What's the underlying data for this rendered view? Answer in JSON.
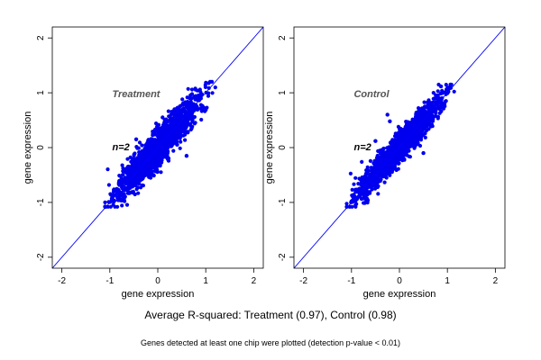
{
  "chart_data": [
    {
      "type": "scatter",
      "title": "",
      "annotation_title": "Treatment",
      "annotation_n": "n=2",
      "xlabel": "gene expression",
      "ylabel": "gene expression",
      "xlim": [
        -2.2,
        2.2
      ],
      "ylim": [
        -2.2,
        2.2
      ],
      "xticks": [
        -2,
        -1,
        0,
        1,
        2
      ],
      "yticks": [
        -2,
        -1,
        0,
        1,
        2
      ],
      "x_tick_labels": [
        "-2",
        "-1",
        "0",
        "1",
        "2"
      ],
      "y_tick_labels": [
        "-2",
        "-1",
        "0",
        "1",
        "2"
      ],
      "reference_line": "y = x",
      "grid": false,
      "point_color": "#0000ee",
      "line_color": "#0000ff",
      "point_cloud": {
        "x_range": [
          -1.1,
          1.2
        ],
        "y_range": [
          -1.08,
          1.2
        ],
        "correlation": 0.97
      },
      "notable_points": [
        {
          "x": 0.1,
          "y": 0.55
        },
        {
          "x": -0.45,
          "y": 0.15
        },
        {
          "x": 0.6,
          "y": -0.15
        },
        {
          "x": -0.15,
          "y": -0.55
        }
      ]
    },
    {
      "type": "scatter",
      "title": "",
      "annotation_title": "Control",
      "annotation_n": "n=2",
      "xlabel": "gene expression",
      "ylabel": "gene expression",
      "xlim": [
        -2.2,
        2.2
      ],
      "ylim": [
        -2.2,
        2.2
      ],
      "xticks": [
        -2,
        -1,
        0,
        1,
        2
      ],
      "yticks": [
        -2,
        -1,
        0,
        1,
        2
      ],
      "x_tick_labels": [
        "-2",
        "-1",
        "0",
        "1",
        "2"
      ],
      "y_tick_labels": [
        "-2",
        "-1",
        "0",
        "1",
        "2"
      ],
      "reference_line": "y = x",
      "grid": false,
      "point_color": "#0000ee",
      "line_color": "#0000ff",
      "point_cloud": {
        "x_range": [
          -1.1,
          1.15
        ],
        "y_range": [
          -1.08,
          1.15
        ],
        "correlation": 0.98
      },
      "notable_points": [
        {
          "x": -0.25,
          "y": 0.6
        },
        {
          "x": -0.2,
          "y": 0.48
        },
        {
          "x": -0.5,
          "y": 0.12
        },
        {
          "x": 0.5,
          "y": -0.1
        }
      ]
    }
  ],
  "caption": {
    "main": "Average R-squared: Treatment (0.97), Control (0.98)",
    "sub": "Genes detected at least one chip were plotted (detection p-value < 0.01)"
  }
}
